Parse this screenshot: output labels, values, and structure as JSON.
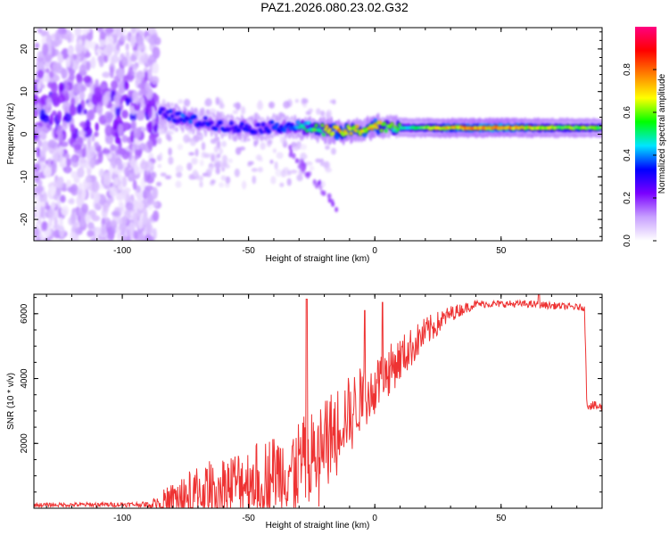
{
  "title": "PAZ1.2026.080.23.02.G32",
  "chart_data": [
    {
      "type": "heatmap",
      "title": "PAZ1.2026.080.23.02.G32",
      "xlabel": "Height of straight line (km)",
      "ylabel": "Frequency (Hz)",
      "xlim": [
        -135,
        90
      ],
      "ylim": [
        -25,
        25
      ],
      "xticks": [
        -100,
        -50,
        0,
        50
      ],
      "yticks": [
        -20,
        -10,
        0,
        10,
        20
      ],
      "xtick_labels": [
        "-100",
        "-50",
        "0",
        "50"
      ],
      "ytick_labels": [
        "-20",
        "-10",
        "0",
        "10",
        "20"
      ],
      "colorbar": {
        "label": "Normalized spectral amplitude",
        "range": [
          0,
          1
        ],
        "ticks": [
          0.0,
          0.2,
          0.4,
          0.6,
          0.8
        ],
        "tick_labels": [
          "0.0",
          "0.2",
          "0.4",
          "0.6",
          "0.8"
        ],
        "colors": [
          "#ffffff",
          "#c8a0ff",
          "#7a00ff",
          "#0000ff",
          "#00e5ff",
          "#00ff00",
          "#ffff00",
          "#ff8000",
          "#ff0000",
          "#ff0080"
        ]
      },
      "ridge": {
        "x": [
          -85,
          -75,
          -65,
          -55,
          -45,
          -35,
          -25,
          -15,
          -5,
          0,
          5,
          15,
          30,
          50,
          70,
          90
        ],
        "freq": [
          5,
          3.5,
          2.5,
          1.5,
          1.5,
          2,
          1.5,
          0.5,
          1,
          2,
          1.5,
          1.5,
          1.5,
          1.5,
          1.5,
          1.5
        ],
        "amplitude": [
          0.3,
          0.35,
          0.3,
          0.3,
          0.3,
          0.35,
          0.5,
          0.7,
          0.65,
          0.7,
          0.55,
          0.5,
          0.7,
          0.75,
          0.6,
          0.55
        ]
      }
    },
    {
      "type": "line",
      "xlabel": "Height of straight line (km)",
      "ylabel": "SNR (10 * v/v)",
      "xlim": [
        -135,
        90
      ],
      "ylim": [
        0,
        6600
      ],
      "xticks": [
        -100,
        -50,
        0,
        50
      ],
      "yticks": [
        2000,
        4000,
        6000
      ],
      "xtick_labels": [
        "-100",
        "-50",
        "0",
        "50"
      ],
      "ytick_labels": [
        "2000",
        "4000",
        "6000"
      ],
      "color": "#ee3333",
      "envelope": {
        "x": [
          -135,
          -90,
          -85,
          -75,
          -65,
          -55,
          -45,
          -35,
          -25,
          -20,
          -15,
          -10,
          -5,
          0,
          10,
          20,
          30,
          40,
          50,
          60,
          70,
          80,
          83,
          84,
          90
        ],
        "base": [
          100,
          120,
          200,
          400,
          600,
          800,
          1000,
          1200,
          1500,
          2000,
          2600,
          3000,
          3400,
          3800,
          4600,
          5400,
          6000,
          6300,
          6300,
          6300,
          6250,
          6200,
          6200,
          3200,
          3100
        ],
        "noise": [
          60,
          80,
          300,
          700,
          900,
          1000,
          1100,
          1300,
          1500,
          1400,
          1200,
          1100,
          1000,
          900,
          700,
          500,
          250,
          120,
          110,
          110,
          110,
          100,
          120,
          150,
          150
        ]
      },
      "spikes": [
        {
          "x": -27,
          "y": 6450
        },
        {
          "x": -4,
          "y": 6100
        },
        {
          "x": 3,
          "y": 6350
        },
        {
          "x": 65,
          "y": 6600
        }
      ]
    }
  ]
}
